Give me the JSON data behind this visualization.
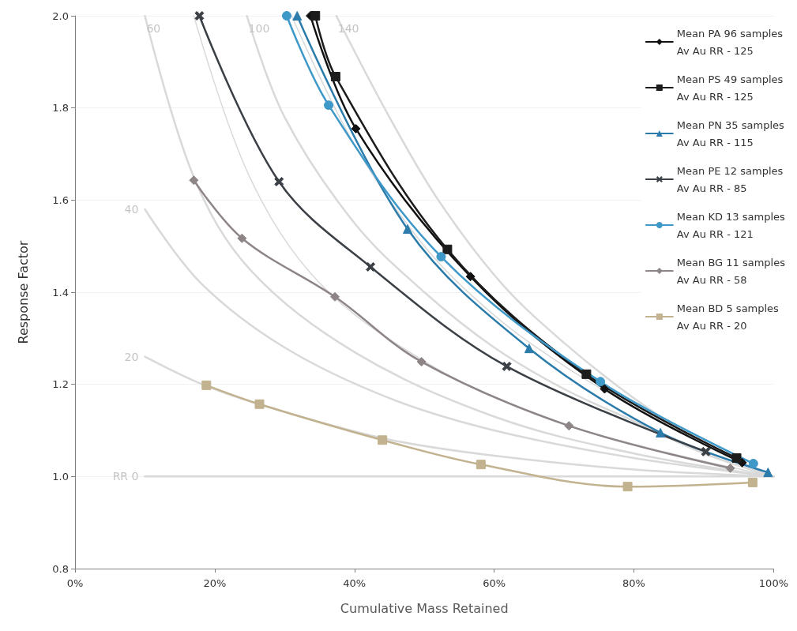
{
  "chart_data": {
    "type": "line",
    "xlabel": "Cumulative Mass Retained",
    "ylabel": "Response Factor",
    "xlim": [
      0,
      100
    ],
    "xticks": [
      {
        "value": 0,
        "label": "0%"
      },
      {
        "value": 20,
        "label": "20%"
      },
      {
        "value": 40,
        "label": "40%"
      },
      {
        "value": 60,
        "label": "60%"
      },
      {
        "value": 80,
        "label": "80%"
      },
      {
        "value": 100,
        "label": "100%"
      }
    ],
    "ylim": [
      0.8,
      2.0
    ],
    "yticks": [
      {
        "value": 0.8,
        "label": "0.8"
      },
      {
        "value": 1.0,
        "label": "1.0"
      },
      {
        "value": 1.2,
        "label": "1.2"
      },
      {
        "value": 1.4,
        "label": "1.4"
      },
      {
        "value": 1.6,
        "label": "1.6"
      },
      {
        "value": 1.8,
        "label": "1.8"
      },
      {
        "value": 2.0,
        "label": "2.0"
      }
    ],
    "grid": "y",
    "legend": "top right",
    "line_style": "solid",
    "series": [
      {
        "name": "RR 0",
        "color": "#d9d9d9",
        "marker": "none",
        "x": [
          10,
          100
        ],
        "values": [
          1.0,
          1.0
        ]
      },
      {
        "name": "20",
        "color": "#d9d9d9",
        "marker": "none",
        "x": [
          10,
          19,
          30,
          45,
          60,
          80,
          100
        ],
        "values": [
          1.26,
          1.195,
          1.14,
          1.08,
          1.045,
          1.015,
          1.0
        ]
      },
      {
        "name": "40",
        "color": "#d9d9d9",
        "marker": "none",
        "x": [
          10,
          18,
          30,
          45,
          60,
          80,
          100
        ],
        "values": [
          1.58,
          1.42,
          1.28,
          1.17,
          1.1,
          1.04,
          1.0
        ]
      },
      {
        "name": "60",
        "color": "#d9d9d9",
        "marker": "none",
        "x": [
          10,
          17,
          25,
          40,
          60,
          80,
          100
        ],
        "values": [
          2.0,
          1.65,
          1.45,
          1.27,
          1.13,
          1.05,
          1.0
        ]
      },
      {
        "color": "#d9d9d9",
        "marker": "none",
        "x": [
          17,
          25,
          35,
          50,
          65,
          80,
          100
        ],
        "values": [
          2.0,
          1.65,
          1.42,
          1.25,
          1.14,
          1.07,
          1.0
        ]
      },
      {
        "name": "100",
        "color": "#d9d9d9",
        "marker": "none",
        "x": [
          24.6,
          30,
          40,
          50,
          60,
          70,
          80,
          90,
          100
        ],
        "values": [
          2.0,
          1.78,
          1.55,
          1.4,
          1.28,
          1.19,
          1.12,
          1.05,
          1.0
        ]
      },
      {
        "color": "#d9d9d9",
        "marker": "none",
        "x": [
          31,
          40,
          50,
          60,
          70,
          80,
          90,
          100
        ],
        "values": [
          2.0,
          1.72,
          1.5,
          1.35,
          1.24,
          1.15,
          1.07,
          1.0
        ]
      },
      {
        "name": "140",
        "color": "#d9d9d9",
        "marker": "none",
        "x": [
          37.4,
          45,
          52,
          61,
          70,
          80,
          90,
          100
        ],
        "values": [
          2.0,
          1.78,
          1.6,
          1.42,
          1.29,
          1.17,
          1.07,
          1.0
        ]
      },
      {
        "name": "Mean PA 96 samples\nAv Au RR - 125",
        "color": "#111111",
        "marker": "diamond",
        "x": [
          33.7,
          40.2,
          56.6,
          75.8,
          95.5
        ],
        "values": [
          2.0,
          1.755,
          1.434,
          1.19,
          1.03
        ]
      },
      {
        "name": "Mean PS 49 samples\nAv Au RR - 125",
        "color": "#1c1c1c",
        "marker": "square",
        "x": [
          34.4,
          37.3,
          53.3,
          73.2,
          94.7
        ],
        "values": [
          2.0,
          1.868,
          1.493,
          1.222,
          1.04
        ]
      },
      {
        "name": "Mean PN 35 samples\nAv Au RR - 115",
        "color": "#2b7bab",
        "marker": "triangle",
        "x": [
          31.8,
          47.6,
          65,
          83.8,
          99.2
        ],
        "values": [
          2.0,
          1.537,
          1.278,
          1.095,
          1.009
        ]
      },
      {
        "name": "Mean PE 12 samples\nAv Au RR - 85",
        "color": "#3b4046",
        "marker": "cross",
        "x": [
          17.8,
          29.2,
          42.3,
          61.8,
          90.3
        ],
        "values": [
          2.0,
          1.64,
          1.455,
          1.239,
          1.054
        ]
      },
      {
        "name": "Mean KD 13 samples\nAv Au RR - 121",
        "color": "#3f99c8",
        "marker": "circle",
        "x": [
          30.3,
          36.3,
          52.4,
          75.2,
          97.1
        ],
        "values": [
          2.0,
          1.806,
          1.477,
          1.206,
          1.028
        ]
      },
      {
        "name": "Mean BG 11 samples\nAv Au RR - 58",
        "color": "#8e8587",
        "marker": "diamond",
        "x": [
          17,
          23.9,
          37.2,
          49.6,
          70.7,
          93.8
        ],
        "values": [
          1.643,
          1.517,
          1.39,
          1.249,
          1.11,
          1.018
        ]
      },
      {
        "name": "Mean BD 5 samples\nAv Au RR - 20",
        "color": "#c2b28f",
        "marker": "square",
        "x": [
          18.8,
          26.4,
          44,
          58.1,
          79.1,
          97
        ],
        "values": [
          1.198,
          1.157,
          1.079,
          1.026,
          0.978,
          0.987
        ]
      }
    ]
  }
}
